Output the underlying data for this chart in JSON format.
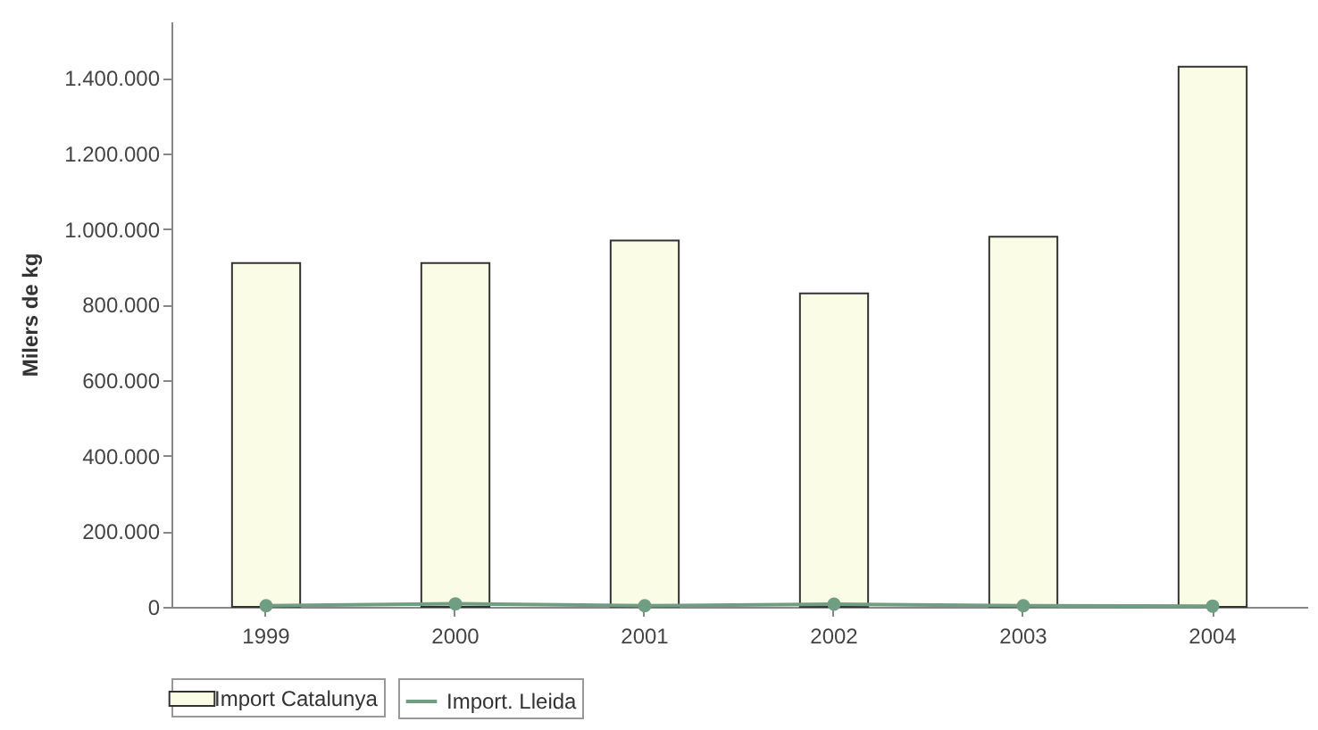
{
  "chart_data": {
    "type": "bar",
    "ylabel": "Milers de kg",
    "categories": [
      "1999",
      "2000",
      "2001",
      "2002",
      "2003",
      "2004"
    ],
    "ylim": [
      0,
      1550000
    ],
    "yticks": [
      {
        "value": 0,
        "label": "0"
      },
      {
        "value": 200000,
        "label": "200.000"
      },
      {
        "value": 400000,
        "label": "400.000"
      },
      {
        "value": 600000,
        "label": "600.000"
      },
      {
        "value": 800000,
        "label": "800.000"
      },
      {
        "value": 1000000,
        "label": "1.000.000"
      },
      {
        "value": 1200000,
        "label": "1.200.000"
      },
      {
        "value": 1400000,
        "label": "1.400.000"
      }
    ],
    "legend": "bottom",
    "marker": "circle",
    "series": [
      {
        "name": "Import Catalunya",
        "type": "bar",
        "color": "#fbfce6",
        "values": [
          910000,
          910000,
          970000,
          830000,
          980000,
          1430000
        ]
      },
      {
        "name": "Import. Lleida",
        "type": "line",
        "color": "#6f9e82",
        "values": [
          3000,
          8000,
          3000,
          7000,
          3000,
          2000
        ]
      }
    ]
  }
}
